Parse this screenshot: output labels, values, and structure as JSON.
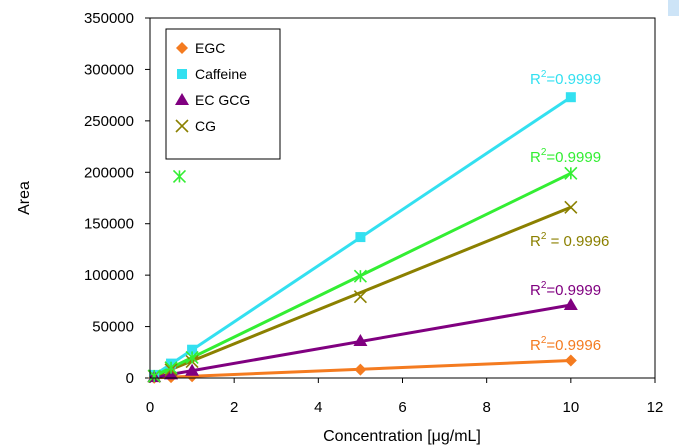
{
  "chart_data": {
    "type": "scatter",
    "xlabel": "Concentration [μg/mL]",
    "ylabel": "Area",
    "xlim": [
      0,
      12
    ],
    "ylim": [
      0,
      350000
    ],
    "x_ticks": [
      "0",
      "2",
      "4",
      "6",
      "8",
      "10",
      "12"
    ],
    "y_ticks": [
      "0",
      "50000",
      "100000",
      "150000",
      "200000",
      "250000",
      "300000",
      "350000"
    ],
    "grid": false,
    "legend_position": "top-left",
    "series": [
      {
        "name": "EGC",
        "color": "#F47B20",
        "marker": "diamond",
        "points": [
          [
            0.1,
            200
          ],
          [
            0.5,
            850
          ],
          [
            1,
            1700
          ],
          [
            5,
            8200
          ],
          [
            10,
            17000
          ]
        ],
        "r2_label": "R",
        "r2_value": "=0.9996",
        "line": [
          [
            0,
            0
          ],
          [
            10,
            17000
          ]
        ]
      },
      {
        "name": "Caffeine",
        "color": "#33E0F0",
        "marker": "square",
        "points": [
          [
            0.1,
            3000
          ],
          [
            0.5,
            14000
          ],
          [
            1,
            27500
          ],
          [
            5,
            137000
          ],
          [
            10,
            273000
          ]
        ],
        "r2_label": "R",
        "r2_value": "=0.9999",
        "line": [
          [
            0,
            0
          ],
          [
            10,
            273000
          ]
        ]
      },
      {
        "name": "EC  GCG",
        "color": "#800080",
        "marker": "triangle",
        "points": [
          [
            0.1,
            800
          ],
          [
            0.5,
            3500
          ],
          [
            1,
            7000
          ],
          [
            5,
            36000
          ],
          [
            10,
            71000
          ]
        ],
        "r2_label": "R",
        "r2_value": "=0.9999",
        "line": [
          [
            0,
            0
          ],
          [
            10,
            71000
          ]
        ]
      },
      {
        "name": "CG",
        "color": "#8B8000",
        "marker": "x",
        "points": [
          [
            0.1,
            1700
          ],
          [
            0.5,
            8000
          ],
          [
            1,
            16000
          ],
          [
            5,
            79000
          ],
          [
            10,
            166000
          ]
        ],
        "r2_label": "R",
        "r2_value": " = 0.9996",
        "line": [
          [
            0,
            0
          ],
          [
            10,
            166000
          ]
        ]
      },
      {
        "color": "#33EE33",
        "marker": "asterisk",
        "points": [
          [
            0.1,
            2000
          ],
          [
            0.5,
            10000
          ],
          [
            0.7,
            196000
          ],
          [
            1,
            20000
          ],
          [
            5,
            99000
          ],
          [
            10,
            199000
          ]
        ],
        "r2_label": "R",
        "r2_value": "=0.9999",
        "line": [
          [
            0,
            0
          ],
          [
            10,
            199000
          ]
        ]
      }
    ]
  },
  "legend": [
    {
      "label": "EGC",
      "marker": "diamond",
      "color": "#F47B20"
    },
    {
      "label": "Caffeine",
      "marker": "square",
      "color": "#33E0F0"
    },
    {
      "label": "EC  GCG",
      "marker": "triangle",
      "color": "#800080"
    },
    {
      "label": "CG",
      "marker": "x",
      "color": "#8B8000"
    }
  ],
  "r2_superscript": "2"
}
